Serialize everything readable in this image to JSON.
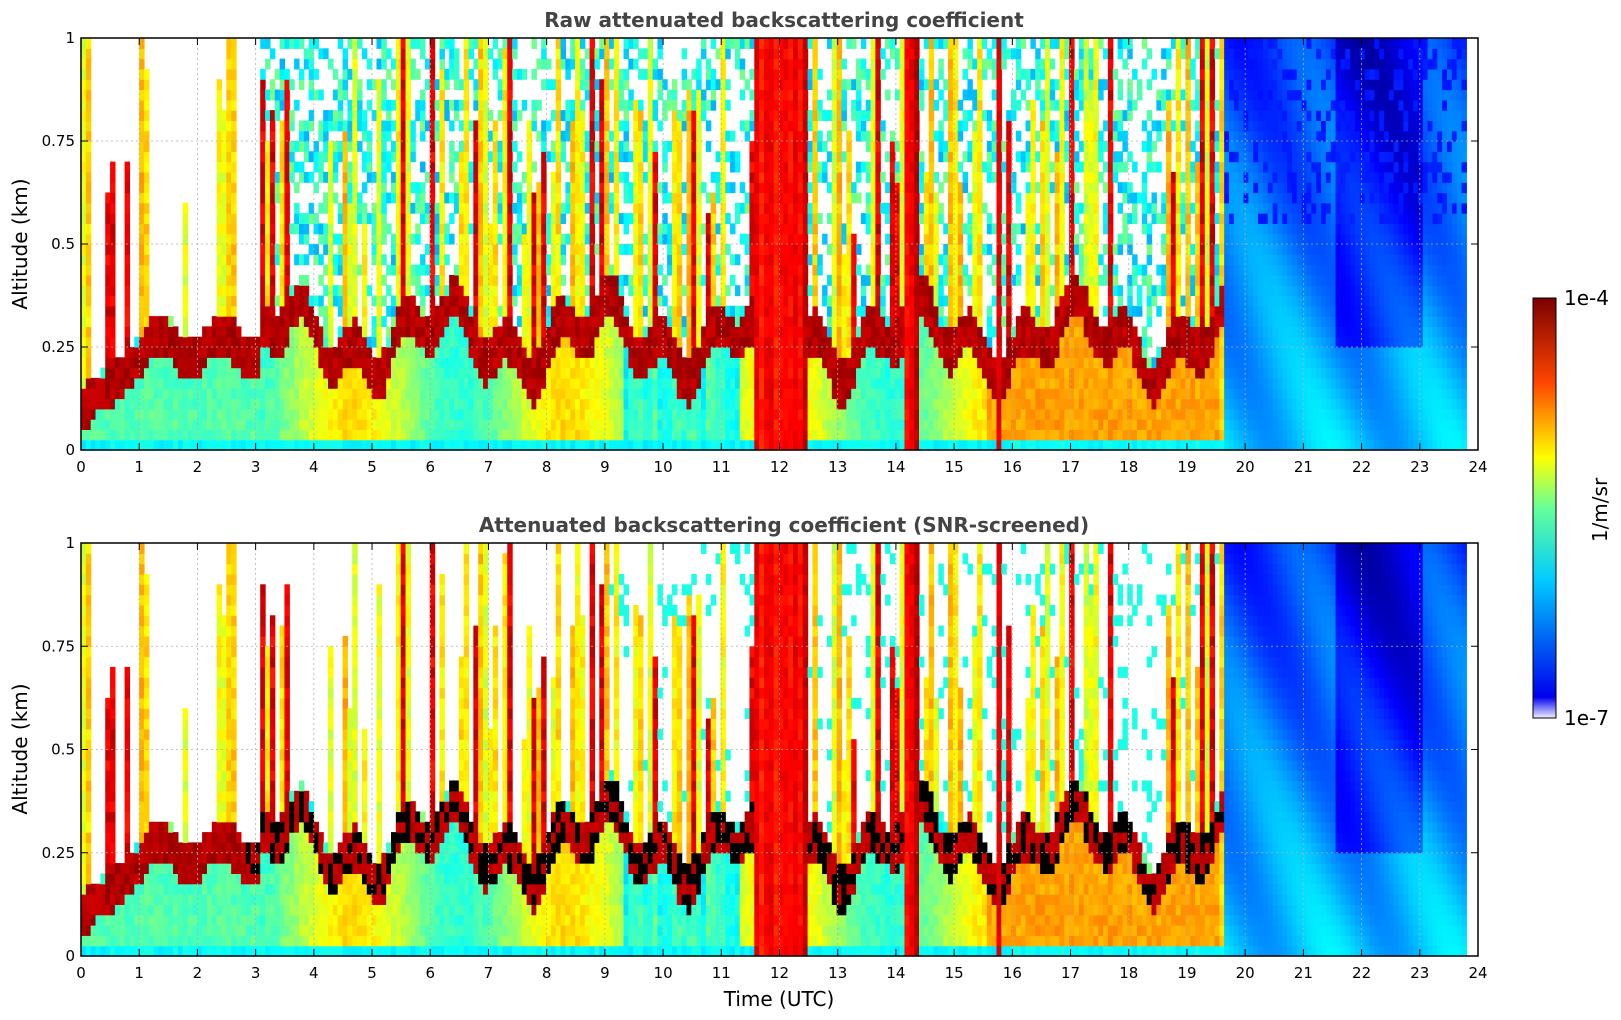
{
  "chart_data": [
    {
      "type": "heatmap",
      "title": "Raw attenuated backscattering coefficient",
      "xlabel": "",
      "ylabel": "Altitude (km)",
      "xlim": [
        0,
        24
      ],
      "ylim": [
        0,
        1
      ],
      "xticks": [
        "0",
        "1",
        "2",
        "3",
        "4",
        "5",
        "6",
        "7",
        "8",
        "9",
        "10",
        "11",
        "12",
        "13",
        "14",
        "15",
        "16",
        "17",
        "18",
        "19",
        "20",
        "21",
        "22",
        "23",
        "24"
      ],
      "yticks": [
        "0",
        "0.25",
        "0.5",
        "0.75",
        "1"
      ],
      "grid": true,
      "screened": false
    },
    {
      "type": "heatmap",
      "title": "Attenuated backscattering coefficient (SNR-screened)",
      "xlabel": "Time (UTC)",
      "ylabel": "Altitude (km)",
      "xlim": [
        0,
        24
      ],
      "ylim": [
        0,
        1
      ],
      "xticks": [
        "0",
        "1",
        "2",
        "3",
        "4",
        "5",
        "6",
        "7",
        "8",
        "9",
        "10",
        "11",
        "12",
        "13",
        "14",
        "15",
        "16",
        "17",
        "18",
        "19",
        "20",
        "21",
        "22",
        "23",
        "24"
      ],
      "yticks": [
        "0",
        "0.25",
        "0.5",
        "0.75",
        "1"
      ],
      "grid": true,
      "screened": true
    }
  ],
  "colorbar": {
    "label": "1/m/sr",
    "max_label": "1e-4",
    "min_label": "1e-7",
    "scale": "log",
    "colormap": "jet"
  },
  "data_end_hour": 23.8
}
